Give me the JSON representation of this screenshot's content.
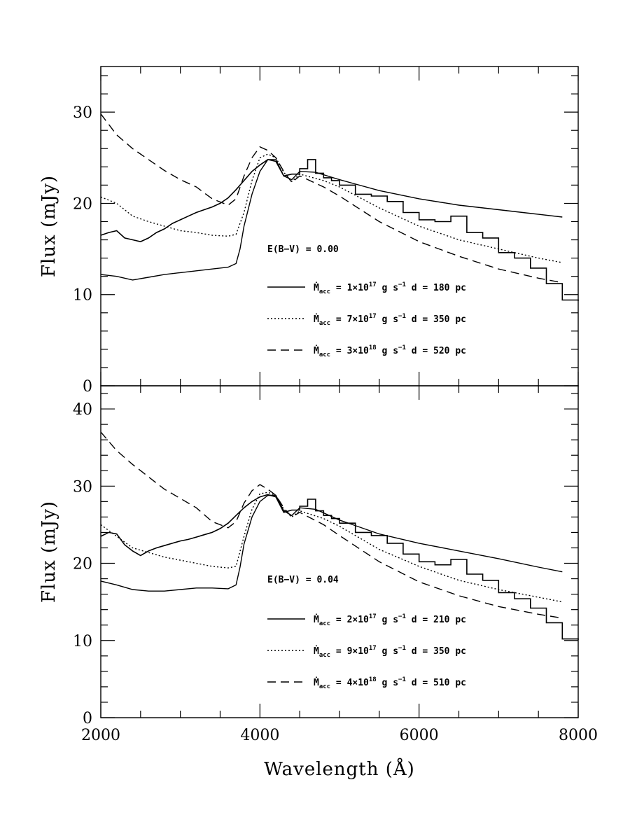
{
  "chart_data": [
    {
      "type": "line",
      "xlabel": "",
      "ylabel": "Flux (mJy)",
      "xlim": [
        2000,
        8000
      ],
      "ylim": [
        0,
        35
      ],
      "xticks": [
        2000,
        4000,
        6000,
        8000
      ],
      "yticks": [
        0,
        10,
        20,
        30
      ],
      "yticks_minor_step": 2,
      "xticks_minor_step": 500,
      "annotation": "E(B−V) = 0.00",
      "legend": [
        {
          "style": "solid",
          "mdot": "1×10",
          "exp": "17",
          "unit": " g s",
          "unit_exp": "−1",
          "dist": "d = 180 pc"
        },
        {
          "style": "dotted",
          "mdot": "7×10",
          "exp": "17",
          "unit": " g s",
          "unit_exp": "−1",
          "dist": "d = 350 pc"
        },
        {
          "style": "dashed",
          "mdot": "3×10",
          "exp": "18",
          "unit": " g s",
          "unit_exp": "−1",
          "dist": "d = 520 pc"
        }
      ],
      "observed": {
        "x": [
          2000,
          2100,
          2200,
          2300,
          2400,
          2500,
          2600,
          2700,
          2800,
          2900,
          3000,
          3100,
          3200,
          3300,
          3400,
          3500,
          3600,
          3700,
          3800,
          3900,
          4000,
          4100,
          4200,
          4300,
          4400,
          4500,
          4600,
          4700,
          4800,
          4900,
          5000,
          5200,
          5400,
          5600,
          5800,
          6000,
          6200,
          6400,
          6600,
          6800,
          7000,
          7200,
          7400,
          7600,
          7800,
          8000
        ],
        "y": [
          16.5,
          16.8,
          17.0,
          16.2,
          16.0,
          15.8,
          16.2,
          16.8,
          17.2,
          17.8,
          18.2,
          18.6,
          19.0,
          19.3,
          19.6,
          20.0,
          20.6,
          21.5,
          22.5,
          23.5,
          24.2,
          24.8,
          24.6,
          23.0,
          23.2,
          23.8,
          24.8,
          23.3,
          22.8,
          22.5,
          22.0,
          21.0,
          20.8,
          20.2,
          19.0,
          18.2,
          18.0,
          18.6,
          16.8,
          16.2,
          14.6,
          14.0,
          12.9,
          11.2,
          9.4,
          9.3
        ]
      },
      "series": [
        {
          "style": "solid",
          "x": [
            2000,
            2200,
            2400,
            2600,
            2800,
            3000,
            3200,
            3400,
            3600,
            3700,
            3750,
            3800,
            3900,
            4000,
            4100,
            4200,
            4300,
            4400,
            4500,
            4700,
            5000,
            5500,
            6000,
            6500,
            7000,
            7500,
            7800
          ],
          "y": [
            12.2,
            12.0,
            11.6,
            11.9,
            12.2,
            12.4,
            12.6,
            12.8,
            13.0,
            13.4,
            15.0,
            17.5,
            21.0,
            23.5,
            24.8,
            24.8,
            23.0,
            22.6,
            23.5,
            23.4,
            22.6,
            21.4,
            20.5,
            19.8,
            19.3,
            18.8,
            18.5
          ]
        },
        {
          "style": "dotted",
          "x": [
            2000,
            2200,
            2400,
            2600,
            2800,
            3000,
            3200,
            3400,
            3600,
            3700,
            3800,
            3900,
            4000,
            4100,
            4200,
            4300,
            4400,
            4500,
            4800,
            5000,
            5500,
            6000,
            6500,
            7000,
            7500,
            7800
          ],
          "y": [
            20.7,
            20.0,
            18.6,
            18.0,
            17.5,
            17.0,
            16.8,
            16.5,
            16.4,
            16.6,
            19.0,
            22.5,
            25.0,
            25.4,
            25.0,
            23.4,
            22.4,
            23.2,
            22.5,
            21.8,
            19.5,
            17.5,
            16.0,
            15.0,
            14.0,
            13.5
          ]
        },
        {
          "style": "dashed",
          "x": [
            2000,
            2200,
            2400,
            2600,
            2800,
            3000,
            3200,
            3400,
            3600,
            3700,
            3800,
            3900,
            4000,
            4100,
            4200,
            4300,
            4400,
            4500,
            4800,
            5000,
            5500,
            6000,
            6500,
            7000,
            7500,
            7800
          ],
          "y": [
            29.8,
            27.5,
            26.0,
            24.8,
            23.6,
            22.6,
            21.8,
            20.5,
            19.8,
            20.5,
            23.0,
            25.0,
            26.2,
            25.8,
            25.0,
            23.5,
            22.3,
            23.0,
            21.8,
            20.8,
            18.0,
            15.8,
            14.2,
            12.8,
            11.8,
            11.3
          ]
        }
      ]
    },
    {
      "type": "line",
      "xlabel": "Wavelength (Å)",
      "ylabel": "Flux (mJy)",
      "xlim": [
        2000,
        8000
      ],
      "ylim": [
        0,
        43
      ],
      "xticks": [
        2000,
        4000,
        6000,
        8000
      ],
      "yticks": [
        0,
        10,
        20,
        30,
        40
      ],
      "yticks_minor_step": 2,
      "xticks_minor_step": 500,
      "annotation": "E(B−V) = 0.04",
      "legend": [
        {
          "style": "solid",
          "mdot": "2×10",
          "exp": "17",
          "unit": " g s",
          "unit_exp": "−1",
          "dist": "d = 210 pc"
        },
        {
          "style": "dotted",
          "mdot": "9×10",
          "exp": "17",
          "unit": " g s",
          "unit_exp": "−1",
          "dist": "d = 350 pc"
        },
        {
          "style": "dashed",
          "mdot": "4×10",
          "exp": "18",
          "unit": " g s",
          "unit_exp": "−1",
          "dist": "d = 510 pc"
        }
      ],
      "observed": {
        "x": [
          2000,
          2100,
          2200,
          2300,
          2400,
          2500,
          2600,
          2700,
          2800,
          2900,
          3000,
          3100,
          3200,
          3300,
          3400,
          3500,
          3600,
          3700,
          3800,
          3900,
          4000,
          4100,
          4200,
          4300,
          4400,
          4500,
          4600,
          4700,
          4800,
          4900,
          5000,
          5200,
          5400,
          5600,
          5800,
          6000,
          6200,
          6400,
          6600,
          6800,
          7000,
          7200,
          7400,
          7600,
          7800,
          8000
        ],
        "y": [
          23.5,
          24.0,
          23.8,
          22.4,
          21.6,
          21.0,
          21.6,
          22.0,
          22.3,
          22.6,
          22.9,
          23.1,
          23.4,
          23.7,
          24.0,
          24.5,
          25.2,
          26.2,
          27.2,
          28.0,
          28.6,
          28.9,
          28.6,
          26.6,
          26.9,
          27.4,
          28.3,
          26.8,
          26.2,
          25.8,
          25.2,
          24.0,
          23.6,
          22.6,
          21.2,
          20.2,
          19.8,
          20.5,
          18.6,
          17.8,
          16.2,
          15.4,
          14.2,
          12.3,
          10.2,
          10.1
        ]
      },
      "series": [
        {
          "style": "solid",
          "x": [
            2000,
            2200,
            2400,
            2600,
            2800,
            3000,
            3200,
            3400,
            3600,
            3700,
            3750,
            3800,
            3900,
            4000,
            4100,
            4200,
            4300,
            4400,
            4500,
            4700,
            5000,
            5500,
            6000,
            6500,
            7000,
            7500,
            7800
          ],
          "y": [
            17.7,
            17.2,
            16.6,
            16.4,
            16.4,
            16.6,
            16.8,
            16.8,
            16.7,
            17.2,
            19.5,
            22.5,
            26.0,
            28.0,
            28.8,
            28.8,
            26.8,
            26.2,
            27.2,
            27.0,
            25.6,
            23.8,
            22.6,
            21.6,
            20.6,
            19.5,
            18.9
          ]
        },
        {
          "style": "dotted",
          "x": [
            2000,
            2200,
            2400,
            2600,
            2800,
            3000,
            3200,
            3400,
            3600,
            3700,
            3800,
            3900,
            4000,
            4100,
            4200,
            4300,
            4400,
            4500,
            4800,
            5000,
            5500,
            6000,
            6500,
            7000,
            7500,
            7800
          ],
          "y": [
            25.0,
            23.5,
            22.0,
            21.4,
            20.8,
            20.4,
            20.0,
            19.6,
            19.4,
            19.6,
            23.5,
            27.0,
            29.0,
            29.2,
            28.8,
            27.0,
            26.0,
            26.8,
            25.8,
            24.8,
            21.8,
            19.6,
            17.8,
            16.6,
            15.6,
            15.0
          ]
        },
        {
          "style": "dashed",
          "x": [
            2000,
            2200,
            2400,
            2600,
            2800,
            3000,
            3200,
            3400,
            3600,
            3700,
            3800,
            3900,
            4000,
            4100,
            4200,
            4300,
            4400,
            4500,
            4800,
            5000,
            5500,
            6000,
            6500,
            7000,
            7500,
            7800
          ],
          "y": [
            37.0,
            34.6,
            32.8,
            31.2,
            29.6,
            28.4,
            27.2,
            25.4,
            24.6,
            25.4,
            27.8,
            29.4,
            30.2,
            29.6,
            28.8,
            27.2,
            26.0,
            26.6,
            25.0,
            23.6,
            20.2,
            17.6,
            15.8,
            14.4,
            13.4,
            12.9
          ]
        }
      ]
    }
  ]
}
